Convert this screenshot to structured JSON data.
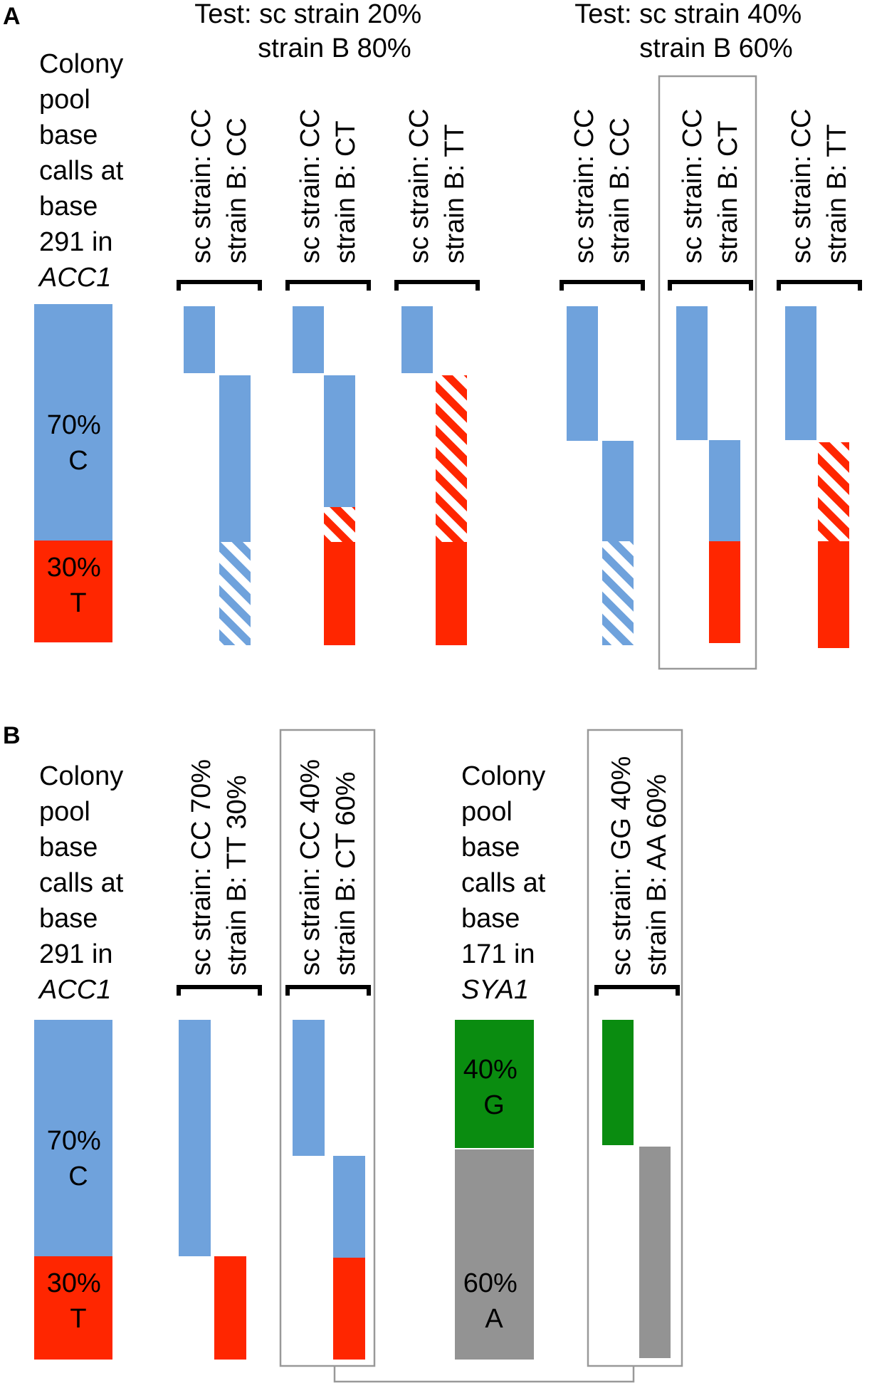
{
  "panel_a": {
    "label": "A",
    "test_1": [
      "Test: sc strain 20%",
      "strain B 80%"
    ],
    "test_2": [
      "Test: sc strain 40%",
      "strain B 60%"
    ],
    "colony_label": [
      "Colony",
      "pool",
      "base",
      "calls at",
      "base",
      "291 in",
      "ACC1"
    ],
    "pool": {
      "c_pct": "70%",
      "c_base": "C",
      "t_pct": "30%",
      "t_base": "T"
    },
    "columns": [
      [
        "sc strain: CC",
        "strain B: CC"
      ],
      [
        "sc strain: CC",
        "strain B: CT"
      ],
      [
        "sc strain: CC",
        "strain B: TT"
      ],
      [
        "sc strain: CC",
        "strain B: CC"
      ],
      [
        "sc strain: CC",
        "strain B: CT"
      ],
      [
        "sc strain: CC",
        "strain B: TT"
      ]
    ]
  },
  "panel_b": {
    "label": "B",
    "colony_label_1": [
      "Colony",
      "pool",
      "base",
      "calls at",
      "base",
      "291 in",
      "ACC1"
    ],
    "colony_label_2": [
      "Colony",
      "pool",
      "base",
      "calls at",
      "base",
      "171 in",
      "SYA1"
    ],
    "pool_1": {
      "c_pct": "70%",
      "c_base": "C",
      "t_pct": "30%",
      "t_base": "T"
    },
    "pool_2": {
      "g_pct": "40%",
      "g_base": "G",
      "a_pct": "60%",
      "a_base": "A"
    },
    "columns": [
      [
        "sc strain: CC 70%",
        "strain B: TT 30%"
      ],
      [
        "sc strain: CC 40%",
        "strain B:  CT 60%"
      ],
      [
        "sc strain: GG 40%",
        "strain B: AA  60%"
      ]
    ]
  },
  "colors": {
    "c": "#6fa2dc",
    "t": "#ff2600",
    "g": "#0a8c10",
    "a": "#939393",
    "box": "#999999"
  }
}
